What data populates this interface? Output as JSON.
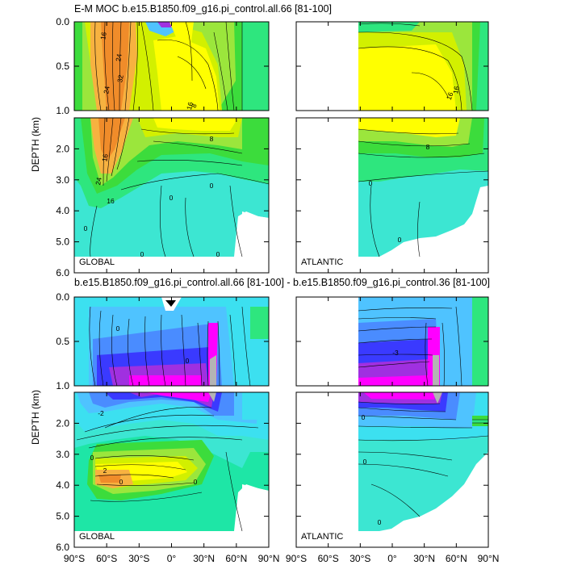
{
  "colors": {
    "orange": "#f08c2a",
    "light_orange": "#f7b240",
    "yellow": "#ffff00",
    "yellow_green": "#d2f000",
    "light_green": "#9be63c",
    "green": "#3cdc3c",
    "mid_green": "#2ee67e",
    "sea_green": "#1ee6a6",
    "aquamarine": "#3ce6d2",
    "cyan": "#3ce0f0",
    "sky_blue": "#4fc3ff",
    "blue": "#4a8cff",
    "deep_blue": "#3a3aff",
    "purple": "#a030e0",
    "magenta": "#ff00ff",
    "grey": "#b4b4b4",
    "contour": "#000000",
    "background": "#ffffff"
  },
  "figure": {
    "top_title": "E-M MOC  b.e15.B1850.f09_g16.pi_control.all.66 [81-100]",
    "bottom_title": "b.e15.B1850.f09_g16.pi_control.all.66 [81-100] - b.e15.B1850.f09_g16.pi_control.36 [81-100]",
    "ylabel": "DEPTH (km)"
  },
  "chart_data": [
    {
      "type": "contour",
      "title": "E-M MOC  b.e15.B1850.f09_g16.pi_control.all.66 [81-100]",
      "region": "GLOBAL",
      "ylabel": "DEPTH (km)",
      "xlim": [
        -90,
        90
      ],
      "ylim": [
        6.0,
        0.0
      ],
      "x_ticks": [
        "90°S",
        "60°S",
        "30°S",
        "0°",
        "30°N",
        "60°N",
        "90°N"
      ],
      "y_ticks_upper": [
        "0.0",
        "0.5",
        "1.0"
      ],
      "y_ticks_lower": [
        "2.0",
        "3.0",
        "4.0",
        "5.0",
        "6.0"
      ],
      "contour_labels": [
        "16",
        "24",
        "32",
        "24",
        "16",
        "8",
        "16",
        "8",
        "24",
        "16",
        "0",
        "0",
        "0",
        "0",
        "0"
      ]
    },
    {
      "type": "contour",
      "title": "E-M MOC  b.e15.B1850.f09_g16.pi_control.all.66 [81-100]",
      "region": "ATLANTIC",
      "ylabel": "",
      "xlim": [
        -90,
        90
      ],
      "ylim": [
        6.0,
        0.0
      ],
      "x_ticks": [
        "90°S",
        "60°S",
        "30°S",
        "0°",
        "30°N",
        "60°N",
        "90°N"
      ],
      "contour_labels": [
        "16",
        "16",
        "8",
        "0",
        "0"
      ]
    },
    {
      "type": "contour",
      "title": "b.e15.B1850.f09_g16.pi_control.all.66 [81-100] - b.e15.B1850.f09_g16.pi_control.36 [81-100]",
      "region": "GLOBAL",
      "ylabel": "DEPTH (km)",
      "xlim": [
        -90,
        90
      ],
      "ylim": [
        6.0,
        0.0
      ],
      "x_ticks": [
        "90°S",
        "60°S",
        "30°S",
        "0°",
        "30°N",
        "60°N",
        "90°N"
      ],
      "y_ticks_upper": [
        "0.0",
        "0.5",
        "1.0"
      ],
      "y_ticks_lower": [
        "2.0",
        "3.0",
        "4.0",
        "5.0",
        "6.0"
      ],
      "contour_labels": [
        "0",
        "-2",
        "0",
        "2",
        "0",
        "0",
        "0"
      ]
    },
    {
      "type": "contour",
      "title": "b.e15.B1850.f09_g16.pi_control.all.66 [81-100] - b.e15.B1850.f09_g16.pi_control.36 [81-100]",
      "region": "ATLANTIC",
      "ylabel": "",
      "xlim": [
        -90,
        90
      ],
      "ylim": [
        6.0,
        0.0
      ],
      "x_ticks": [
        "90°S",
        "60°S",
        "30°S",
        "0°",
        "30°N",
        "60°N",
        "90°N"
      ],
      "contour_labels": [
        "-3",
        "0",
        "0",
        "0"
      ]
    }
  ]
}
